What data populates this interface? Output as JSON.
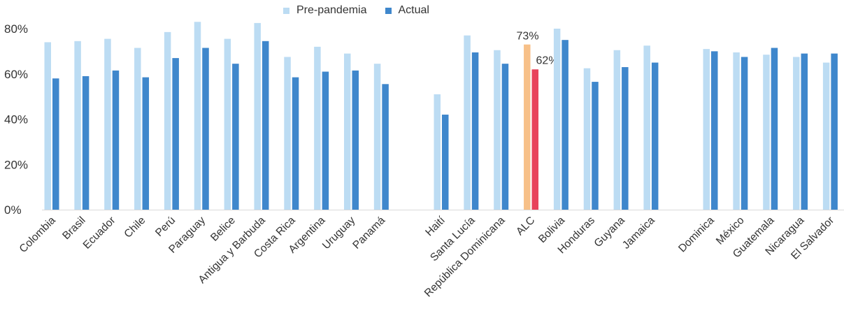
{
  "colors": {
    "pre": "#bcdcf3",
    "actual": "#3f87cc",
    "highlight_pre": "#f7c088",
    "highlight_actual": "#e8435a",
    "axis": "#d9d9d9",
    "text": "#333333"
  },
  "chart_data": {
    "type": "bar",
    "ylim": [
      0,
      80
    ],
    "y_ticks": [
      "0%",
      "20%",
      "40%",
      "60%",
      "80%"
    ],
    "groups": [
      {
        "categories": [
          "Colombia",
          "Brasil",
          "Ecuador",
          "Chile",
          "Perú",
          "Paraguay",
          "Belice",
          "Antigua y Barbuda",
          "Costa Rica",
          "Argentina",
          "Uruguay",
          "Panamá"
        ]
      },
      {
        "categories": [
          "Haití",
          "Santa Lucía",
          "República Dominicana",
          "ALC",
          "Bolivia",
          "Honduras",
          "Guyana",
          "Jamaica"
        ]
      },
      {
        "categories": [
          "Dominica",
          "México",
          "Guatemala",
          "Nicaragua",
          "El Salvador"
        ]
      }
    ],
    "categories": [
      "Colombia",
      "Brasil",
      "Ecuador",
      "Chile",
      "Perú",
      "Paraguay",
      "Belice",
      "Antigua y Barbuda",
      "Costa Rica",
      "Argentina",
      "Uruguay",
      "Panamá",
      "Haití",
      "Santa Lucía",
      "República Dominicana",
      "ALC",
      "Bolivia",
      "Honduras",
      "Guyana",
      "Jamaica",
      "Dominica",
      "México",
      "Guatemala",
      "Nicaragua",
      "El Salvador"
    ],
    "series": [
      {
        "name": "Pre-pandemia",
        "values": [
          74,
          74.5,
          75.5,
          71.5,
          78.5,
          83,
          75.5,
          82.5,
          67.5,
          72,
          69,
          64.5,
          51,
          77,
          70.5,
          73,
          80,
          62.5,
          70.5,
          72.5,
          71,
          69.5,
          68.5,
          67.5,
          65
        ]
      },
      {
        "name": "Actual",
        "values": [
          58,
          59,
          61.5,
          58.5,
          67,
          71.5,
          64.5,
          74.5,
          58.5,
          61,
          61.5,
          55.5,
          42,
          69.5,
          64.5,
          62,
          75,
          56.5,
          63,
          65,
          70,
          67.5,
          71.5,
          69,
          69
        ]
      }
    ],
    "highlight_category": "ALC",
    "data_labels": {
      "ALC_pre": "73%",
      "ALC_actual": "62%"
    },
    "legend_position": "top-center",
    "grid": false
  }
}
